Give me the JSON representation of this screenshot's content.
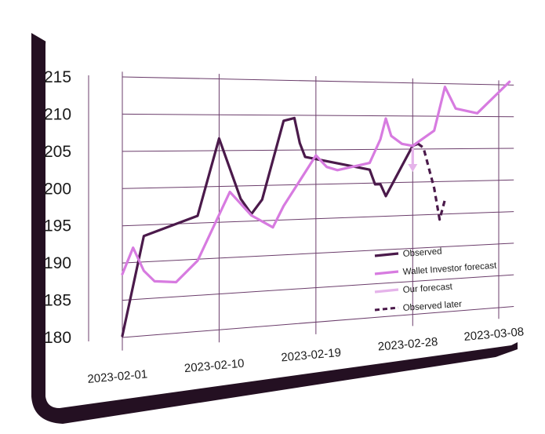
{
  "colors": {
    "observed": "#4b1a4b",
    "wallet_forecast": "#d77be0",
    "our_forecast": "#e5b3ea",
    "observed_later": "#4b1a4b",
    "grid": "#6b3d6b",
    "card_shadow": "#241022"
  },
  "chart_data": {
    "type": "line",
    "title": "",
    "xlabel": "",
    "ylabel": "",
    "ylim": [
      180,
      215
    ],
    "y_ticks": [
      "215",
      "210",
      "205",
      "200",
      "195",
      "190",
      "185",
      "180"
    ],
    "y_tick_values": [
      215,
      210,
      205,
      200,
      195,
      190,
      185,
      180
    ],
    "x_ticks": [
      "2023-02-01",
      "2023-02-10",
      "2023-02-19",
      "2023-02-28",
      "2023-03-08"
    ],
    "xlim": [
      "2023-02-01",
      "2023-03-08"
    ],
    "grid": true,
    "legend_position": "bottom-right",
    "legend": [
      {
        "label": "Observed",
        "style": "solid",
        "color_key": "observed"
      },
      {
        "label": "Wallet Investor forecast",
        "style": "solid",
        "color_key": "wallet_forecast"
      },
      {
        "label": "Our forecast",
        "style": "solid",
        "color_key": "our_forecast"
      },
      {
        "label": "Observed later",
        "style": "dashed",
        "color_key": "observed_later"
      }
    ],
    "series": [
      {
        "name": "Observed",
        "color_key": "observed",
        "dashed": false,
        "points": [
          [
            "2023-02-01",
            180.2
          ],
          [
            "2023-02-03",
            193.5
          ],
          [
            "2023-02-08",
            196.0
          ],
          [
            "2023-02-10",
            206.7
          ],
          [
            "2023-02-12",
            198.2
          ],
          [
            "2023-02-13",
            196.0
          ],
          [
            "2023-02-14",
            198.0
          ],
          [
            "2023-02-16",
            209.2
          ],
          [
            "2023-02-17",
            209.6
          ],
          [
            "2023-02-17.5",
            206.0
          ],
          [
            "2023-02-18",
            204.0
          ],
          [
            "2023-02-24",
            202.0
          ],
          [
            "2023-02-24.5",
            199.8
          ],
          [
            "2023-02-25",
            199.8
          ],
          [
            "2023-02-25.5",
            198.0
          ],
          [
            "2023-02-27",
            202.5
          ],
          [
            "2023-02-28",
            205.5
          ],
          [
            "2023-02-28.5",
            205.8
          ]
        ]
      },
      {
        "name": "Wallet Investor forecast",
        "color_key": "wallet_forecast",
        "dashed": false,
        "points": [
          [
            "2023-02-01",
            188.5
          ],
          [
            "2023-02-02",
            192.0
          ],
          [
            "2023-02-03",
            188.8
          ],
          [
            "2023-02-04",
            187.3
          ],
          [
            "2023-02-06",
            187.0
          ],
          [
            "2023-02-08",
            189.8
          ],
          [
            "2023-02-11",
            199.2
          ],
          [
            "2023-02-13",
            195.8
          ],
          [
            "2023-02-15",
            194.0
          ],
          [
            "2023-02-16",
            197.0
          ],
          [
            "2023-02-19",
            204.2
          ],
          [
            "2023-02-20",
            202.5
          ],
          [
            "2023-02-21",
            202.0
          ],
          [
            "2023-02-24",
            203.0
          ],
          [
            "2023-02-25",
            206.5
          ],
          [
            "2023-02-25.5",
            209.6
          ],
          [
            "2023-02-26",
            207.0
          ],
          [
            "2023-02-27",
            205.8
          ],
          [
            "2023-02-28",
            205.5
          ],
          [
            "2023-03-02",
            207.8
          ],
          [
            "2023-03-03",
            214.5
          ],
          [
            "2023-03-04",
            211.2
          ],
          [
            "2023-03-06",
            210.5
          ],
          [
            "2023-03-09",
            215.5
          ]
        ]
      },
      {
        "name": "Observed later",
        "color_key": "observed_later",
        "dashed": true,
        "points": [
          [
            "2023-02-28.5",
            205.8
          ],
          [
            "2023-03-01",
            205.2
          ],
          [
            "2023-03-02",
            199.0
          ],
          [
            "2023-03-02.5",
            194.2
          ],
          [
            "2023-03-03",
            197.2
          ]
        ]
      }
    ],
    "our_forecast_arrow": {
      "date": "2023-02-28",
      "from": 205.2,
      "to": 201.8
    }
  }
}
